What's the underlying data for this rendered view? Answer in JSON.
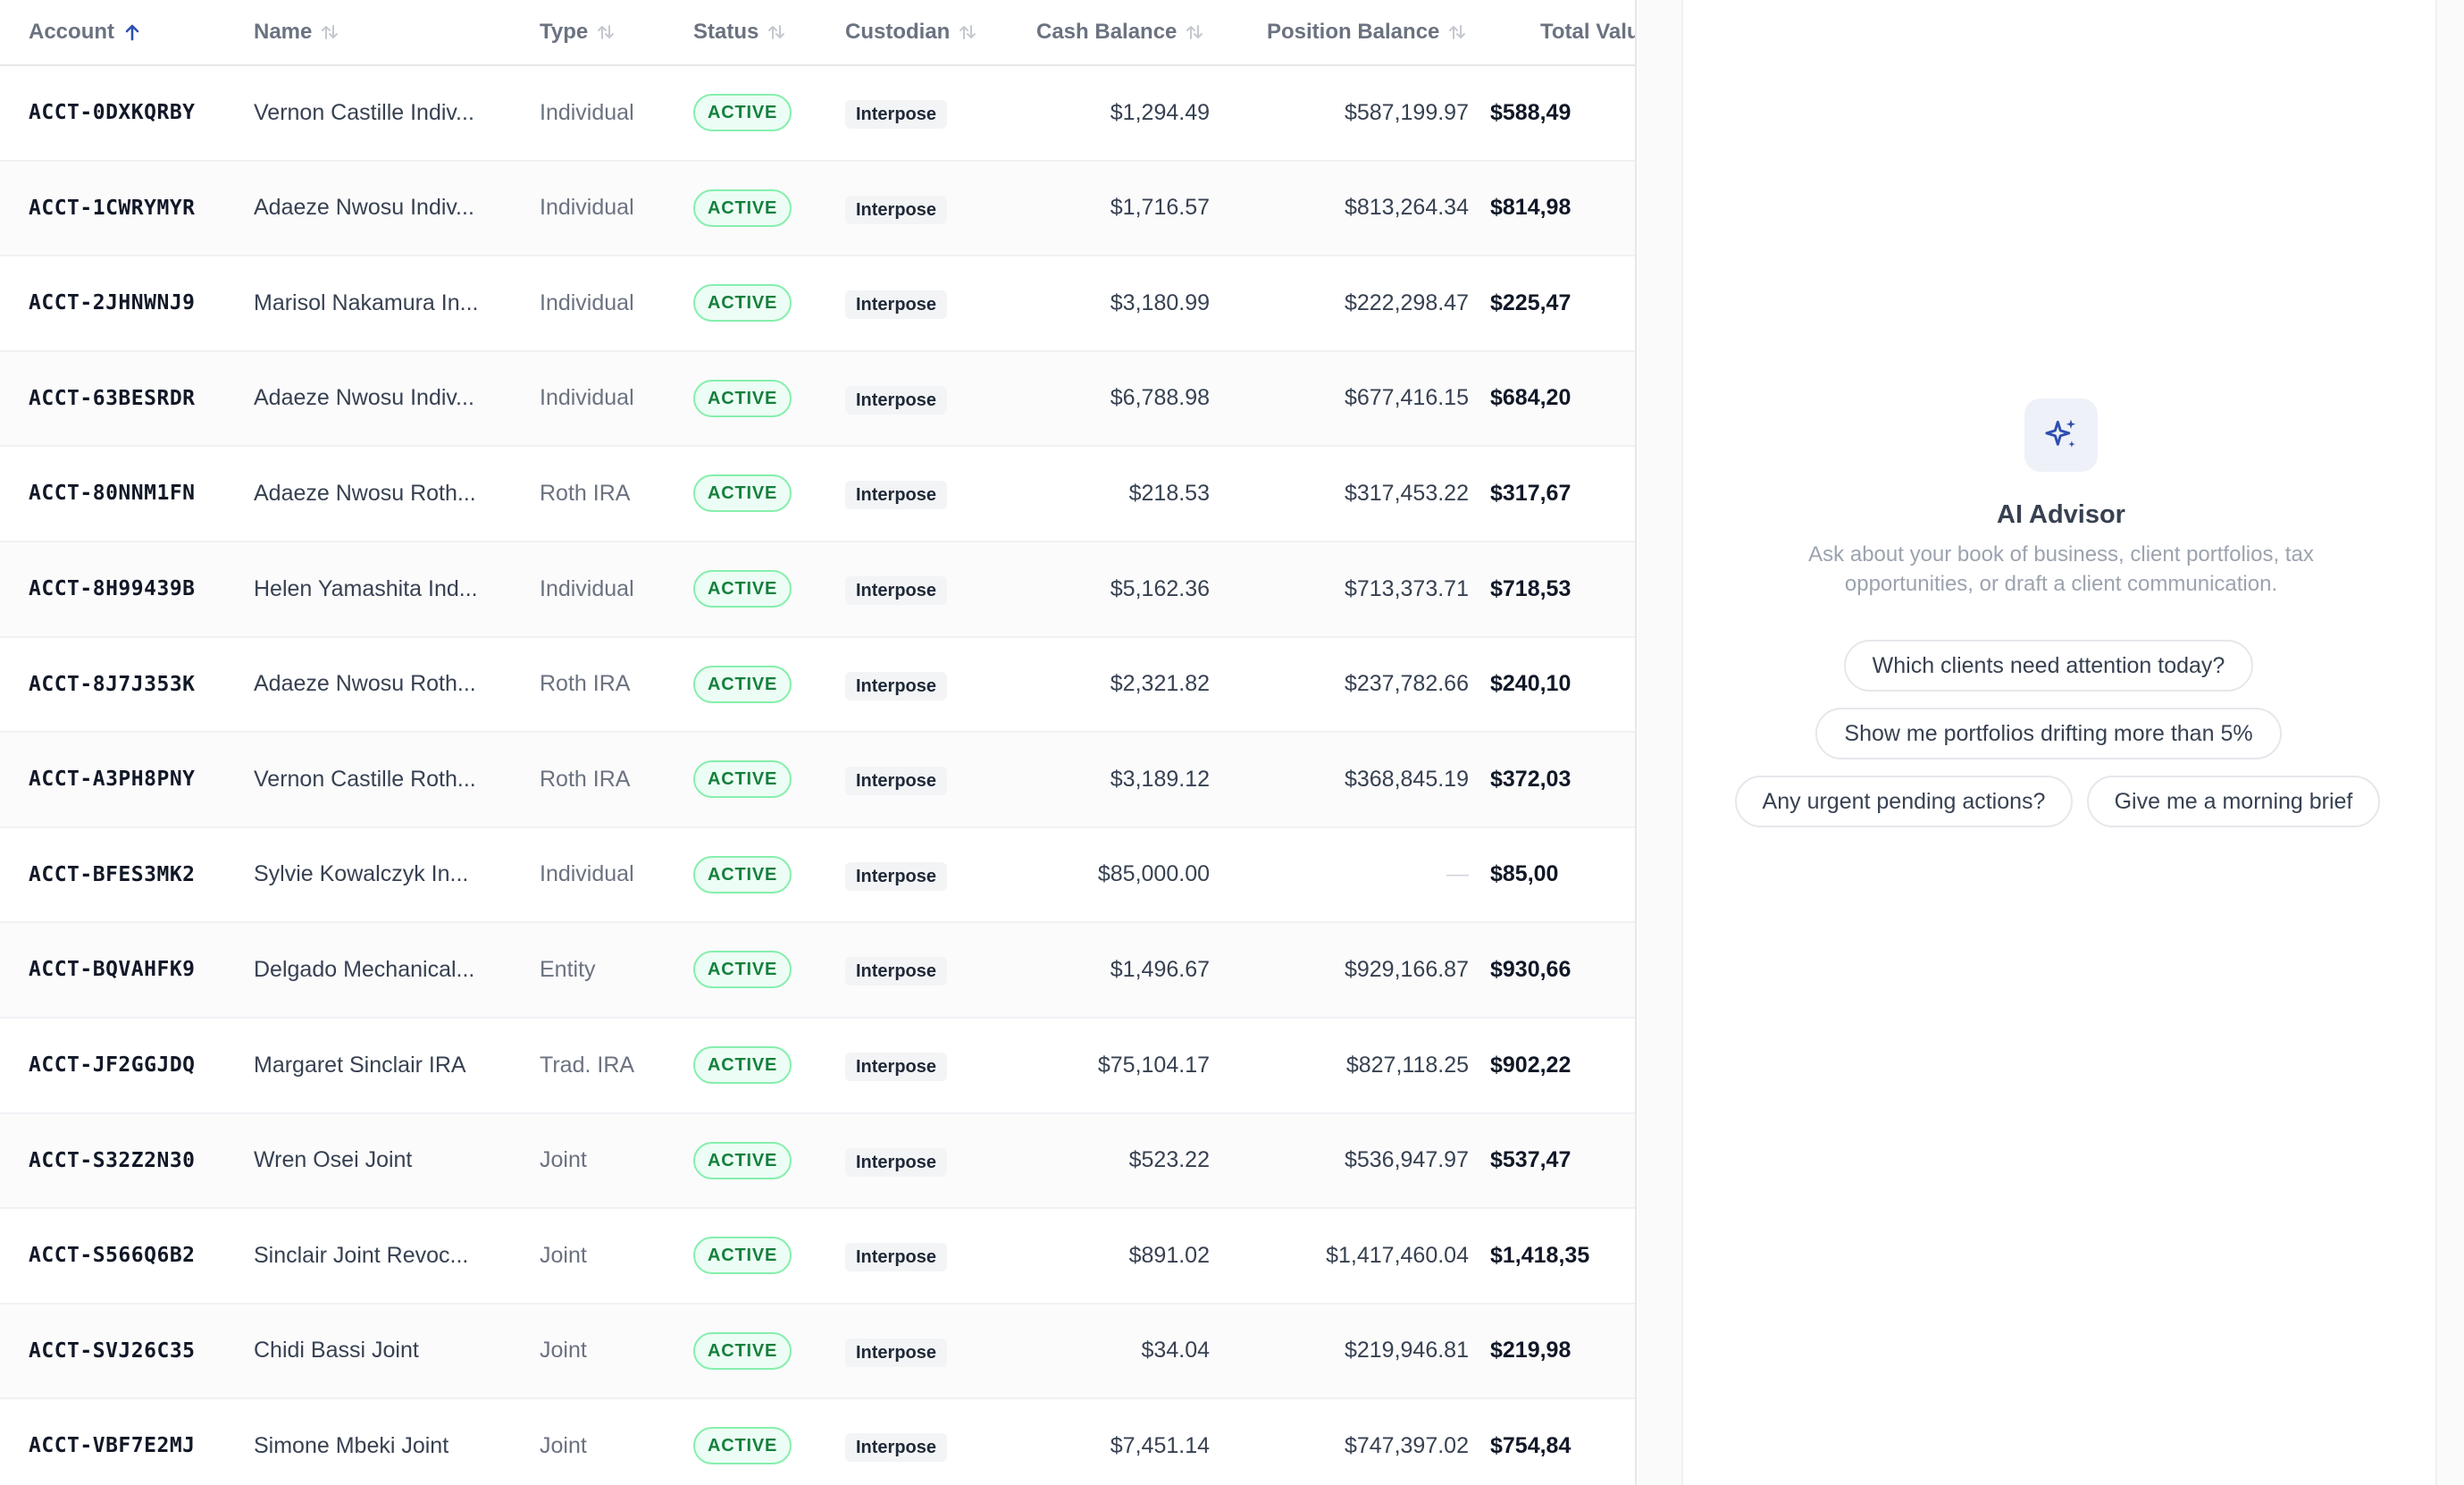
{
  "table": {
    "columns": [
      {
        "key": "account",
        "label": "Account",
        "sort": "asc"
      },
      {
        "key": "name",
        "label": "Name",
        "sort": "none"
      },
      {
        "key": "type",
        "label": "Type",
        "sort": "none"
      },
      {
        "key": "status",
        "label": "Status",
        "sort": "none"
      },
      {
        "key": "custodian",
        "label": "Custodian",
        "sort": "none"
      },
      {
        "key": "cash",
        "label": "Cash Balance",
        "sort": "none"
      },
      {
        "key": "position",
        "label": "Position Balance",
        "sort": "none"
      },
      {
        "key": "total",
        "label": "Total Valu",
        "sort": "none"
      }
    ],
    "rows": [
      {
        "account": "ACCT-0DXKQRBY",
        "name": "Vernon Castille Indiv...",
        "type": "Individual",
        "status": "ACTIVE",
        "custodian": "Interpose",
        "cash": "$1,294.49",
        "position": "$587,199.97",
        "total": "$588,49"
      },
      {
        "account": "ACCT-1CWRYMYR",
        "name": "Adaeze Nwosu Indiv...",
        "type": "Individual",
        "status": "ACTIVE",
        "custodian": "Interpose",
        "cash": "$1,716.57",
        "position": "$813,264.34",
        "total": "$814,98"
      },
      {
        "account": "ACCT-2JHNWNJ9",
        "name": "Marisol Nakamura In...",
        "type": "Individual",
        "status": "ACTIVE",
        "custodian": "Interpose",
        "cash": "$3,180.99",
        "position": "$222,298.47",
        "total": "$225,47"
      },
      {
        "account": "ACCT-63BESRDR",
        "name": "Adaeze Nwosu Indiv...",
        "type": "Individual",
        "status": "ACTIVE",
        "custodian": "Interpose",
        "cash": "$6,788.98",
        "position": "$677,416.15",
        "total": "$684,20"
      },
      {
        "account": "ACCT-80NNM1FN",
        "name": "Adaeze Nwosu Roth...",
        "type": "Roth IRA",
        "status": "ACTIVE",
        "custodian": "Interpose",
        "cash": "$218.53",
        "position": "$317,453.22",
        "total": "$317,67"
      },
      {
        "account": "ACCT-8H99439B",
        "name": "Helen Yamashita Ind...",
        "type": "Individual",
        "status": "ACTIVE",
        "custodian": "Interpose",
        "cash": "$5,162.36",
        "position": "$713,373.71",
        "total": "$718,53"
      },
      {
        "account": "ACCT-8J7J353K",
        "name": "Adaeze Nwosu Roth...",
        "type": "Roth IRA",
        "status": "ACTIVE",
        "custodian": "Interpose",
        "cash": "$2,321.82",
        "position": "$237,782.66",
        "total": "$240,10"
      },
      {
        "account": "ACCT-A3PH8PNY",
        "name": "Vernon Castille Roth...",
        "type": "Roth IRA",
        "status": "ACTIVE",
        "custodian": "Interpose",
        "cash": "$3,189.12",
        "position": "$368,845.19",
        "total": "$372,03"
      },
      {
        "account": "ACCT-BFES3MK2",
        "name": "Sylvie Kowalczyk In...",
        "type": "Individual",
        "status": "ACTIVE",
        "custodian": "Interpose",
        "cash": "$85,000.00",
        "position": "—",
        "total": "$85,00"
      },
      {
        "account": "ACCT-BQVAHFK9",
        "name": "Delgado Mechanical...",
        "type": "Entity",
        "status": "ACTIVE",
        "custodian": "Interpose",
        "cash": "$1,496.67",
        "position": "$929,166.87",
        "total": "$930,66"
      },
      {
        "account": "ACCT-JF2GGJDQ",
        "name": "Margaret Sinclair IRA",
        "type": "Trad. IRA",
        "status": "ACTIVE",
        "custodian": "Interpose",
        "cash": "$75,104.17",
        "position": "$827,118.25",
        "total": "$902,22"
      },
      {
        "account": "ACCT-S32Z2N30",
        "name": "Wren Osei Joint",
        "type": "Joint",
        "status": "ACTIVE",
        "custodian": "Interpose",
        "cash": "$523.22",
        "position": "$536,947.97",
        "total": "$537,47"
      },
      {
        "account": "ACCT-S566Q6B2",
        "name": "Sinclair Joint Revoc...",
        "type": "Joint",
        "status": "ACTIVE",
        "custodian": "Interpose",
        "cash": "$891.02",
        "position": "$1,417,460.04",
        "total": "$1,418,35"
      },
      {
        "account": "ACCT-SVJ26C35",
        "name": "Chidi Bassi Joint",
        "type": "Joint",
        "status": "ACTIVE",
        "custodian": "Interpose",
        "cash": "$34.04",
        "position": "$219,946.81",
        "total": "$219,98"
      },
      {
        "account": "ACCT-VBF7E2MJ",
        "name": "Simone Mbeki Joint",
        "type": "Joint",
        "status": "ACTIVE",
        "custodian": "Interpose",
        "cash": "$7,451.14",
        "position": "$747,397.02",
        "total": "$754,84"
      }
    ]
  },
  "advisor": {
    "icon": "sparkles-icon",
    "title": "AI Advisor",
    "subtitle": "Ask about your book of business, client portfolios, tax opportunities, or draft a client communication.",
    "suggestions": [
      "Which clients need attention today?",
      "Show me portfolios drifting more than 5%",
      "Any urgent pending actions?",
      "Give me a morning brief"
    ]
  },
  "colors": {
    "accent": "#2f4fb0",
    "active_text": "#15803d",
    "active_border": "#86efac",
    "active_bg": "#ecfdf5"
  }
}
